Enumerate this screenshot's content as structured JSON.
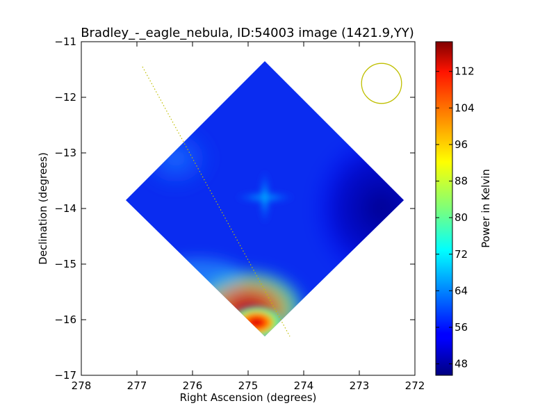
{
  "chart_data": {
    "type": "heatmap",
    "title": "Bradley_-_eagle_nebula, ID:54003 image (1421.9,YY)",
    "xlabel": "Right Ascension (degrees)",
    "ylabel": "Declination (degrees)",
    "xlim": [
      278,
      272
    ],
    "ylim": [
      -17,
      -11
    ],
    "xticks": [
      "278",
      "277",
      "276",
      "275",
      "274",
      "273",
      "272"
    ],
    "yticks": [
      "−11",
      "−12",
      "−13",
      "−14",
      "−15",
      "−16",
      "−17"
    ],
    "colorbar": {
      "label": "Power in Kelvin",
      "range": [
        45.5,
        118.5
      ],
      "ticks": [
        "48",
        "56",
        "64",
        "72",
        "80",
        "88",
        "96",
        "104",
        "112"
      ],
      "colormap": "jet"
    },
    "map_region": {
      "shape": "diamond",
      "vertices_ra_dec": [
        [
          274.7,
          -11.35
        ],
        [
          272.2,
          -13.85
        ],
        [
          274.7,
          -16.3
        ],
        [
          277.2,
          -13.85
        ]
      ]
    },
    "features": [
      {
        "name": "central cross-shaped enhancement",
        "ra": 274.7,
        "dec": -13.8,
        "value": 62
      },
      {
        "name": "peak",
        "ra": 274.9,
        "dec": -16.1,
        "value": 116
      },
      {
        "name": "eastern minimum",
        "ra": 272.6,
        "dec": -14.0,
        "value": 47
      }
    ],
    "galactic_plane_line": {
      "style": "dotted",
      "color": "#bfbf00",
      "from": [
        276.9,
        -11.45
      ],
      "to": [
        274.25,
        -16.3
      ]
    },
    "beam_circle": {
      "ra": 272.6,
      "dec": -11.75,
      "radius_deg": 0.36,
      "color": "#bfbf00"
    },
    "grid": false
  }
}
